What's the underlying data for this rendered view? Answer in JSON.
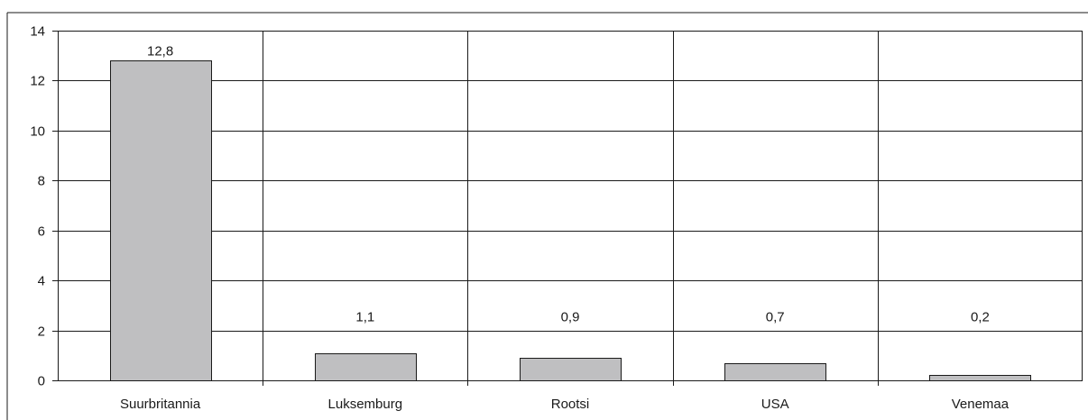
{
  "chart_data": {
    "type": "bar",
    "title": "",
    "xlabel": "",
    "ylabel": "",
    "categories": [
      "Suurbritannia",
      "Luksemburg",
      "Rootsi",
      "USA",
      "Venemaa"
    ],
    "values": [
      12.8,
      1.1,
      0.9,
      0.7,
      0.2
    ],
    "data_labels": [
      "12,8",
      "1,1",
      "0,9",
      "0,7",
      "0,2"
    ],
    "ylim": [
      0,
      14
    ],
    "yticks": [
      0,
      2,
      4,
      6,
      8,
      10,
      12,
      14
    ],
    "ytick_labels": [
      "0",
      "2",
      "4",
      "6",
      "8",
      "10",
      "12",
      "14"
    ],
    "grid": true,
    "legend": "none",
    "bar_color": "#bfbfc1",
    "bar_border_color": "#1a1a1a",
    "line_color": "#1a1a1a"
  }
}
